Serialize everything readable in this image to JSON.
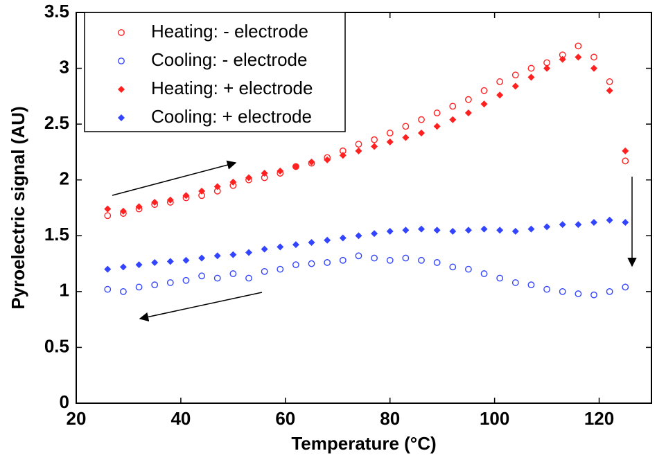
{
  "chart_data": {
    "type": "scatter",
    "xlabel": "Temperature (°C)",
    "ylabel": "Pyroelectric signal (AU)",
    "x": [
      26,
      29,
      32,
      35,
      38,
      41,
      44,
      47,
      50,
      53,
      56,
      59,
      62,
      65,
      68,
      71,
      74,
      77,
      80,
      83,
      86,
      89,
      92,
      95,
      98,
      101,
      104,
      107,
      110,
      113,
      116,
      119,
      122,
      125
    ],
    "series": [
      {
        "name": "Heating: - electrode",
        "color": "#ff2020",
        "marker": "circle",
        "values": [
          1.68,
          1.7,
          1.74,
          1.78,
          1.8,
          1.84,
          1.86,
          1.9,
          1.95,
          2.0,
          2.02,
          2.06,
          2.12,
          2.15,
          2.2,
          2.26,
          2.32,
          2.36,
          2.42,
          2.48,
          2.54,
          2.6,
          2.66,
          2.72,
          2.8,
          2.88,
          2.94,
          3.0,
          3.05,
          3.12,
          3.2,
          3.1,
          2.88,
          2.17
        ]
      },
      {
        "name": "Cooling: - electrode",
        "color": "#3344ff",
        "marker": "circle",
        "values": [
          1.02,
          1.0,
          1.04,
          1.06,
          1.08,
          1.1,
          1.14,
          1.12,
          1.16,
          1.12,
          1.18,
          1.2,
          1.24,
          1.25,
          1.26,
          1.28,
          1.32,
          1.3,
          1.28,
          1.3,
          1.28,
          1.26,
          1.22,
          1.2,
          1.16,
          1.12,
          1.08,
          1.06,
          1.02,
          1.0,
          0.98,
          0.97,
          1.0,
          1.04
        ]
      },
      {
        "name": "Heating: + electrode",
        "color": "#ff2020",
        "marker": "diamond",
        "values": [
          1.74,
          1.72,
          1.76,
          1.8,
          1.82,
          1.86,
          1.9,
          1.94,
          1.98,
          2.02,
          2.06,
          2.08,
          2.12,
          2.16,
          2.18,
          2.22,
          2.26,
          2.3,
          2.34,
          2.38,
          2.42,
          2.48,
          2.54,
          2.6,
          2.68,
          2.76,
          2.84,
          2.92,
          3.0,
          3.08,
          3.1,
          3.0,
          2.8,
          2.26
        ]
      },
      {
        "name": "Cooling: + electrode",
        "color": "#3344ff",
        "marker": "diamond",
        "values": [
          1.2,
          1.22,
          1.24,
          1.26,
          1.27,
          1.28,
          1.3,
          1.32,
          1.33,
          1.35,
          1.38,
          1.4,
          1.42,
          1.44,
          1.46,
          1.48,
          1.5,
          1.52,
          1.54,
          1.55,
          1.56,
          1.55,
          1.54,
          1.55,
          1.56,
          1.55,
          1.54,
          1.56,
          1.58,
          1.6,
          1.6,
          1.62,
          1.64,
          1.62
        ]
      }
    ],
    "xlim": [
      20,
      130
    ],
    "xticks": [
      20,
      40,
      60,
      80,
      100,
      120
    ],
    "ylim": [
      0,
      3.5
    ],
    "yticks": [
      0,
      0.5,
      1,
      1.5,
      2,
      2.5,
      3,
      3.5
    ],
    "legend": "upper left",
    "grid": false
  }
}
